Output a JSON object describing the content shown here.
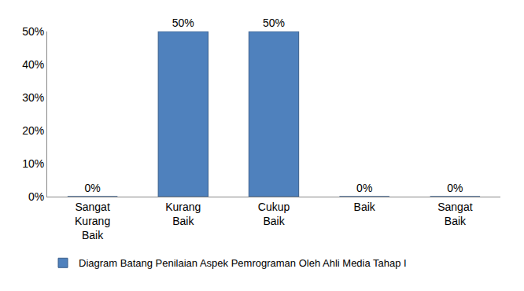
{
  "chart_data": {
    "type": "bar",
    "categories": [
      "Sangat Kurang Baik",
      "Kurang Baik",
      "Cukup Baik",
      "Baik",
      "Sangat Baik"
    ],
    "series": [
      {
        "name": "Diagram Batang Penilaian Aspek Pemrograman Oleh Ahli Media Tahap I",
        "color": "#4f81bd",
        "values": [
          0,
          50,
          50,
          0,
          0
        ],
        "value_labels": [
          "0%",
          "50%",
          "50%",
          "0%",
          "0%"
        ]
      }
    ],
    "ylim": [
      0,
      50
    ],
    "yticks": [
      {
        "value": 0,
        "label": "0%"
      },
      {
        "value": 10,
        "label": "10%"
      },
      {
        "value": 20,
        "label": "20%"
      },
      {
        "value": 30,
        "label": "30%"
      },
      {
        "value": 40,
        "label": "40%"
      },
      {
        "value": 50,
        "label": "50%"
      }
    ],
    "grid": false,
    "data_labels": true,
    "legend": "bottom"
  }
}
